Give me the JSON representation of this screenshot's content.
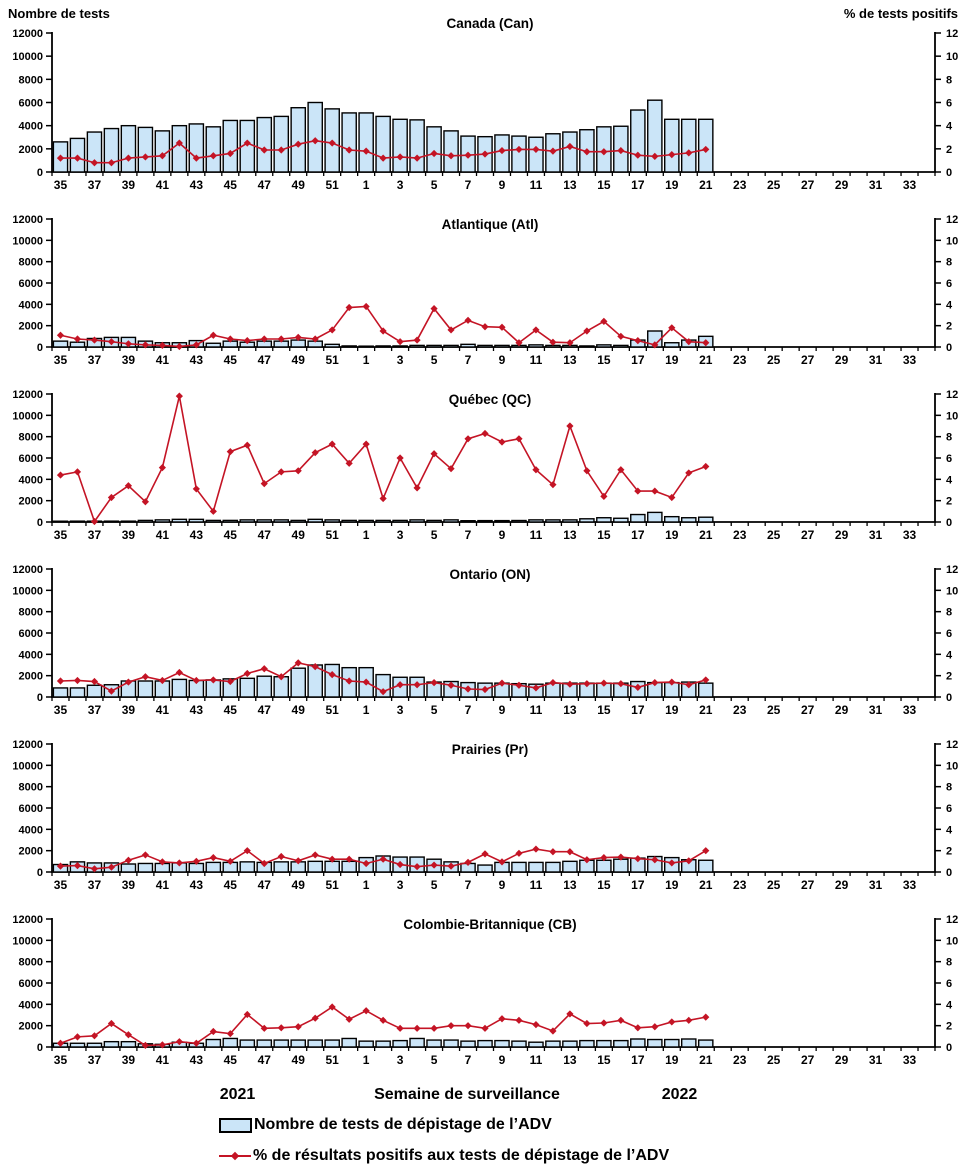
{
  "figure": {
    "left_axis_title": "Nombre de tests",
    "right_axis_title": "% de tests positifs",
    "x_axis_title": "Semaine de surveillance",
    "year_left": "2021",
    "year_right": "2022",
    "legend": [
      {
        "swatch": "bar-swatch",
        "label": "Nombre de tests de dépistage de l’ADV"
      },
      {
        "swatch": "line-swatch",
        "label": "% de résultats positifs aux tests de dépistage de l’ADV"
      }
    ],
    "colors": {
      "bar_fill": "#cbe5f8",
      "bar_stroke": "#000000",
      "line": "#c41425",
      "axis": "#000000"
    }
  },
  "chart_data": {
    "type": "bar+line, 6 stacked regional panels",
    "x": {
      "weeks": [
        35,
        36,
        37,
        38,
        39,
        40,
        41,
        42,
        43,
        44,
        45,
        46,
        47,
        48,
        49,
        50,
        51,
        52,
        1,
        2,
        3,
        4,
        5,
        6,
        7,
        8,
        9,
        10,
        11,
        12,
        13,
        14,
        15,
        16,
        17,
        18,
        19,
        20,
        21
      ],
      "axis_slots": 52,
      "tick_labels": [
        "35",
        "37",
        "39",
        "41",
        "43",
        "45",
        "47",
        "49",
        "51",
        "1",
        "3",
        "5",
        "7",
        "9",
        "11",
        "13",
        "15",
        "17",
        "19",
        "21",
        "23",
        "25",
        "27",
        "29",
        "31",
        "33"
      ],
      "tick_label_slot_indices": [
        0,
        2,
        4,
        6,
        8,
        10,
        12,
        14,
        16,
        18,
        20,
        22,
        24,
        26,
        28,
        30,
        32,
        34,
        36,
        38,
        40,
        42,
        44,
        46,
        48,
        50
      ]
    },
    "y_left": {
      "label": "Nombre de tests",
      "min": 0,
      "max": 12000,
      "ticks": [
        0,
        2000,
        4000,
        6000,
        8000,
        10000,
        12000
      ]
    },
    "y_right": {
      "label": "% de tests positifs",
      "min": 0,
      "max": 12,
      "ticks": [
        0,
        2,
        4,
        6,
        8,
        10,
        12
      ]
    },
    "panels": [
      {
        "region": "Canada (Can)",
        "tests": [
          2600,
          2900,
          3450,
          3750,
          4000,
          3850,
          3550,
          4000,
          4150,
          3900,
          4450,
          4450,
          4700,
          4800,
          5550,
          6000,
          5450,
          5100,
          5100,
          4800,
          4550,
          4500,
          3900,
          3550,
          3100,
          3050,
          3200,
          3100,
          3000,
          3300,
          3450,
          3650,
          3900,
          3950,
          5350,
          6200,
          4550,
          4550,
          4550
        ],
        "pct_positifs": [
          1.2,
          1.2,
          0.8,
          0.8,
          1.2,
          1.3,
          1.4,
          2.5,
          1.2,
          1.4,
          1.6,
          2.5,
          1.9,
          1.9,
          2.4,
          2.7,
          2.5,
          1.9,
          1.8,
          1.2,
          1.3,
          1.2,
          1.6,
          1.4,
          1.45,
          1.55,
          1.85,
          1.95,
          1.95,
          1.8,
          2.2,
          1.75,
          1.75,
          1.85,
          1.45,
          1.35,
          1.5,
          1.65,
          1.95
        ]
      },
      {
        "region": "Atlantique (Atl)",
        "tests": [
          550,
          450,
          800,
          900,
          900,
          550,
          400,
          400,
          600,
          350,
          550,
          450,
          550,
          550,
          650,
          550,
          250,
          100,
          80,
          100,
          100,
          150,
          150,
          150,
          250,
          150,
          150,
          150,
          200,
          150,
          150,
          100,
          200,
          150,
          650,
          1500,
          400,
          650,
          1000
        ],
        "pct_positifs": [
          1.1,
          0.75,
          0.65,
          0.5,
          0.3,
          0.2,
          0.15,
          0.05,
          0.2,
          1.1,
          0.75,
          0.6,
          0.75,
          0.75,
          0.9,
          0.75,
          1.6,
          3.7,
          3.8,
          1.5,
          0.5,
          0.65,
          3.6,
          1.6,
          2.5,
          1.9,
          1.85,
          0.4,
          1.6,
          0.45,
          0.4,
          1.5,
          2.4,
          1.0,
          0.6,
          0.2,
          1.8,
          0.5,
          0.4
        ]
      },
      {
        "region": "Québec (QC)",
        "tests": [
          30,
          80,
          80,
          80,
          80,
          150,
          200,
          250,
          250,
          150,
          150,
          200,
          200,
          200,
          150,
          250,
          200,
          150,
          150,
          150,
          150,
          200,
          150,
          200,
          120,
          130,
          130,
          140,
          200,
          200,
          200,
          300,
          400,
          350,
          700,
          900,
          500,
          400,
          450
        ],
        "pct_positifs": [
          4.4,
          4.7,
          0.05,
          2.3,
          3.4,
          1.9,
          5.1,
          11.8,
          3.1,
          1.0,
          6.6,
          7.2,
          3.6,
          4.7,
          4.8,
          6.5,
          7.3,
          5.5,
          7.3,
          2.2,
          6.0,
          3.2,
          6.4,
          5.0,
          7.8,
          8.3,
          7.5,
          7.8,
          4.9,
          3.5,
          9.0,
          4.8,
          2.4,
          4.9,
          2.9,
          2.9,
          2.3,
          4.6,
          5.2
        ]
      },
      {
        "region": "Ontario (ON)",
        "tests": [
          850,
          850,
          1100,
          1150,
          1500,
          1500,
          1500,
          1650,
          1550,
          1600,
          1700,
          1750,
          1950,
          1900,
          2700,
          3000,
          3050,
          2750,
          2750,
          2100,
          1850,
          1850,
          1400,
          1450,
          1350,
          1300,
          1300,
          1250,
          1200,
          1300,
          1300,
          1300,
          1300,
          1300,
          1450,
          1350,
          1350,
          1400,
          1300
        ],
        "pct_positifs": [
          1.5,
          1.55,
          1.45,
          0.55,
          1.4,
          1.9,
          1.55,
          2.3,
          1.55,
          1.6,
          1.45,
          2.2,
          2.65,
          1.9,
          3.2,
          2.85,
          2.1,
          1.5,
          1.4,
          0.5,
          1.15,
          1.15,
          1.35,
          1.1,
          0.75,
          0.7,
          1.3,
          1.1,
          0.85,
          1.35,
          1.2,
          1.25,
          1.3,
          1.25,
          0.9,
          1.35,
          1.4,
          1.15,
          1.6
        ]
      },
      {
        "region": "Prairies (Pr)",
        "tests": [
          700,
          950,
          850,
          850,
          750,
          800,
          800,
          850,
          800,
          900,
          900,
          950,
          900,
          950,
          950,
          1000,
          1000,
          1000,
          1350,
          1500,
          1400,
          1400,
          1200,
          950,
          800,
          650,
          900,
          900,
          900,
          900,
          1000,
          1100,
          1100,
          1200,
          1300,
          1450,
          1350,
          1150,
          1100
        ],
        "pct_positifs": [
          0.55,
          0.6,
          0.3,
          0.45,
          1.1,
          1.6,
          0.95,
          0.85,
          1.0,
          1.35,
          1.0,
          2.0,
          0.8,
          1.45,
          1.05,
          1.6,
          1.2,
          1.2,
          0.8,
          1.2,
          0.7,
          0.5,
          0.65,
          0.55,
          0.9,
          1.7,
          0.95,
          1.75,
          2.15,
          1.9,
          1.9,
          1.15,
          1.35,
          1.4,
          1.25,
          1.15,
          0.85,
          1.05,
          2.0
        ]
      },
      {
        "region": "Colombie-Britannique (CB)",
        "tests": [
          350,
          350,
          350,
          500,
          500,
          300,
          250,
          450,
          350,
          700,
          800,
          650,
          650,
          650,
          650,
          650,
          650,
          800,
          550,
          550,
          600,
          800,
          650,
          650,
          550,
          600,
          600,
          550,
          450,
          550,
          550,
          600,
          600,
          600,
          750,
          700,
          700,
          750,
          650
        ],
        "pct_positifs": [
          0.35,
          0.95,
          1.05,
          2.2,
          1.15,
          0.15,
          0.2,
          0.5,
          0.35,
          1.45,
          1.25,
          3.05,
          1.75,
          1.8,
          1.9,
          2.7,
          3.75,
          2.6,
          3.4,
          2.5,
          1.75,
          1.75,
          1.75,
          2.0,
          2.0,
          1.75,
          2.65,
          2.5,
          2.1,
          1.5,
          3.1,
          2.2,
          2.25,
          2.5,
          1.8,
          1.9,
          2.35,
          2.5,
          2.8
        ]
      }
    ]
  }
}
